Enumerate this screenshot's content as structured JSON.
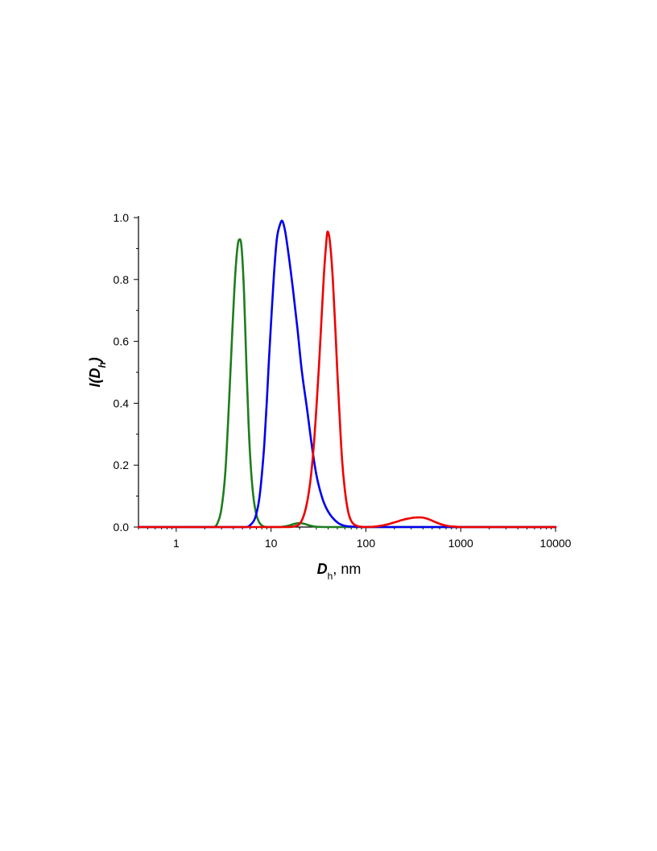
{
  "chart_data": {
    "type": "line",
    "title": "",
    "xlabel": {
      "main": "D",
      "sub": "h",
      "suffix": ", nm"
    },
    "ylabel": {
      "main": "I(D",
      "sub": "h",
      "close": ")"
    },
    "x_scale": "log",
    "xlim": [
      0.4,
      10000
    ],
    "ylim": [
      0,
      1.0
    ],
    "x_ticks": [
      1,
      10,
      100,
      1000,
      10000
    ],
    "x_tick_labels": [
      "1",
      "10",
      "100",
      "1000",
      "10000"
    ],
    "y_ticks": [
      0.0,
      0.2,
      0.4,
      0.6,
      0.8,
      1.0
    ],
    "y_tick_labels": [
      "0.0",
      "0.2",
      "0.4",
      "0.6",
      "0.8",
      "1.0"
    ],
    "grid": false,
    "legend": "none",
    "series": [
      {
        "color": "#1e7d1e",
        "x": [
          0.4,
          2.5,
          2.7,
          3.0,
          3.3,
          3.6,
          3.9,
          4.2,
          4.5,
          4.7,
          4.9,
          5.2,
          5.5,
          5.8,
          6.1,
          6.5,
          7.0,
          7.5,
          8.0,
          9.0,
          10,
          12,
          15,
          18,
          20,
          22,
          25,
          30,
          40,
          100,
          10000
        ],
        "y": [
          0,
          0,
          0.01,
          0.06,
          0.18,
          0.4,
          0.63,
          0.82,
          0.92,
          0.93,
          0.9,
          0.75,
          0.52,
          0.33,
          0.2,
          0.1,
          0.04,
          0.015,
          0.005,
          0,
          0,
          0,
          0.004,
          0.011,
          0.013,
          0.011,
          0.006,
          0.001,
          0,
          0,
          0
        ]
      },
      {
        "color": "#0000ee",
        "x": [
          0.4,
          5.5,
          6.2,
          6.8,
          7.5,
          8.0,
          8.5,
          9.0,
          9.5,
          10,
          10.7,
          11.5,
          12.5,
          13.0,
          14,
          15,
          17,
          19,
          21,
          24,
          27,
          30,
          35,
          40,
          50,
          60,
          80,
          100,
          10000
        ],
        "y": [
          0,
          0,
          0.01,
          0.03,
          0.09,
          0.17,
          0.27,
          0.4,
          0.54,
          0.66,
          0.81,
          0.93,
          0.98,
          0.99,
          0.96,
          0.9,
          0.77,
          0.64,
          0.51,
          0.38,
          0.26,
          0.17,
          0.09,
          0.05,
          0.015,
          0.004,
          0.001,
          0,
          0
        ]
      },
      {
        "color": "#ee0000",
        "x": [
          0.4,
          15,
          18,
          20,
          22,
          24,
          26,
          28,
          30,
          32,
          34,
          36,
          38,
          39.5,
          41,
          43,
          45,
          48,
          50,
          53,
          56,
          60,
          65,
          70,
          80,
          90,
          100,
          120,
          150,
          200,
          250,
          300,
          350,
          380,
          420,
          480,
          550,
          650,
          750,
          900,
          1000,
          10000
        ],
        "y": [
          0,
          0,
          0.003,
          0.01,
          0.035,
          0.08,
          0.15,
          0.25,
          0.38,
          0.52,
          0.67,
          0.81,
          0.91,
          0.955,
          0.94,
          0.88,
          0.79,
          0.62,
          0.5,
          0.35,
          0.22,
          0.12,
          0.05,
          0.02,
          0.004,
          0.001,
          0,
          0.001,
          0.005,
          0.015,
          0.024,
          0.029,
          0.031,
          0.031,
          0.029,
          0.023,
          0.015,
          0.007,
          0.003,
          0.001,
          0,
          0
        ]
      }
    ]
  }
}
